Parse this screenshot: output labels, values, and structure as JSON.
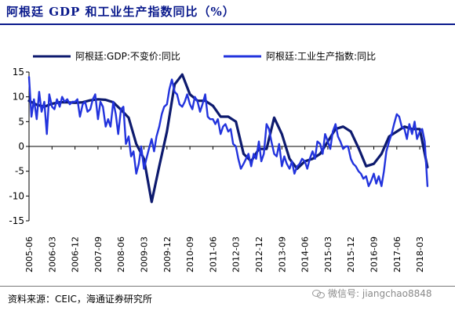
{
  "title": "阿根廷 GDP 和工业生产指数同比（%）",
  "source": "资料来源：CEIC，海通证券研究所",
  "watermark": "微信号: jiangchao8848",
  "chart_data": {
    "type": "line",
    "title": "阿根廷 GDP 和工业生产指数同比（%）",
    "ylim": [
      -15,
      15
    ],
    "yticks": [
      15,
      10,
      5,
      0,
      -5,
      -10,
      -15
    ],
    "xlim": [
      2005.42,
      2018.5
    ],
    "xtick_labels": [
      "2005-06",
      "2006-03",
      "2006-12",
      "2007-09",
      "2008-06",
      "2009-03",
      "2009-12",
      "2010-09",
      "2011-06",
      "2012-03",
      "2012-12",
      "2013-09",
      "2014-06",
      "2015-03",
      "2015-12",
      "2016-09",
      "2017-06",
      "2018-03"
    ],
    "xtick_positions": [
      2005.42,
      2006.17,
      2006.92,
      2007.67,
      2008.42,
      2009.17,
      2009.92,
      2010.67,
      2011.42,
      2012.17,
      2012.92,
      2013.67,
      2014.42,
      2015.17,
      2015.92,
      2016.67,
      2017.42,
      2018.17
    ],
    "grid": false,
    "legend_position": "top",
    "series": [
      {
        "name": "阿根廷:GDP:不变价:同比",
        "color": "#0d1a6e",
        "x": [
          2005.42,
          2005.67,
          2005.92,
          2006.17,
          2006.42,
          2006.67,
          2006.92,
          2007.17,
          2007.42,
          2007.67,
          2007.92,
          2008.17,
          2008.42,
          2008.67,
          2008.92,
          2009.17,
          2009.42,
          2009.67,
          2009.92,
          2010.17,
          2010.42,
          2010.67,
          2010.92,
          2011.17,
          2011.42,
          2011.67,
          2011.92,
          2012.17,
          2012.42,
          2012.67,
          2012.92,
          2013.17,
          2013.42,
          2013.67,
          2013.92,
          2014.17,
          2014.42,
          2014.67,
          2014.92,
          2015.17,
          2015.42,
          2015.67,
          2015.92,
          2016.17,
          2016.42,
          2016.67,
          2016.92,
          2017.17,
          2017.42,
          2017.67,
          2017.92,
          2018.17,
          2018.42
        ],
        "values": [
          9.2,
          8.4,
          8.0,
          8.6,
          8.9,
          8.9,
          8.8,
          8.9,
          9.3,
          9.5,
          9.4,
          8.9,
          7.4,
          5.8,
          0.5,
          -2.5,
          -11.2,
          -4.0,
          3.0,
          12.5,
          14.5,
          10.5,
          9.2,
          9.2,
          8.2,
          6.0,
          6.0,
          5.0,
          -1.5,
          -3.0,
          -0.5,
          -0.5,
          5.8,
          2.5,
          -2.5,
          -4.5,
          -3.0,
          -2.5,
          -1.5,
          1.0,
          3.5,
          4.0,
          3.0,
          -0.3,
          -4.0,
          -3.5,
          -1.5,
          2.0,
          3.0,
          4.0,
          3.5,
          3.5,
          -4.2
        ]
      },
      {
        "name": "阿根廷:工业生产指数:同比",
        "color": "#2233dd",
        "x": [
          2005.42,
          2005.5,
          2005.58,
          2005.67,
          2005.75,
          2005.83,
          2005.92,
          2006.0,
          2006.08,
          2006.17,
          2006.25,
          2006.33,
          2006.42,
          2006.5,
          2006.58,
          2006.67,
          2006.75,
          2006.83,
          2006.92,
          2007.0,
          2007.08,
          2007.17,
          2007.25,
          2007.33,
          2007.42,
          2007.5,
          2007.58,
          2007.67,
          2007.75,
          2007.83,
          2007.92,
          2008.0,
          2008.08,
          2008.17,
          2008.25,
          2008.33,
          2008.42,
          2008.5,
          2008.58,
          2008.67,
          2008.75,
          2008.83,
          2008.92,
          2009.0,
          2009.08,
          2009.17,
          2009.25,
          2009.33,
          2009.42,
          2009.5,
          2009.58,
          2009.67,
          2009.75,
          2009.83,
          2009.92,
          2010.0,
          2010.08,
          2010.17,
          2010.25,
          2010.33,
          2010.42,
          2010.5,
          2010.58,
          2010.67,
          2010.75,
          2010.83,
          2010.92,
          2011.0,
          2011.08,
          2011.17,
          2011.25,
          2011.33,
          2011.42,
          2011.5,
          2011.58,
          2011.67,
          2011.75,
          2011.83,
          2011.92,
          2012.0,
          2012.08,
          2012.17,
          2012.25,
          2012.33,
          2012.42,
          2012.5,
          2012.58,
          2012.67,
          2012.75,
          2012.83,
          2012.92,
          2013.0,
          2013.08,
          2013.17,
          2013.25,
          2013.33,
          2013.42,
          2013.5,
          2013.58,
          2013.67,
          2013.75,
          2013.83,
          2013.92,
          2014.0,
          2014.08,
          2014.17,
          2014.25,
          2014.33,
          2014.42,
          2014.5,
          2014.58,
          2014.67,
          2014.75,
          2014.83,
          2014.92,
          2015.0,
          2015.08,
          2015.17,
          2015.25,
          2015.33,
          2015.42,
          2015.5,
          2015.58,
          2015.67,
          2015.75,
          2015.83,
          2015.92,
          2016.0,
          2016.08,
          2016.17,
          2016.25,
          2016.33,
          2016.42,
          2016.5,
          2016.58,
          2016.67,
          2016.75,
          2016.83,
          2016.92,
          2017.0,
          2017.08,
          2017.17,
          2017.25,
          2017.33,
          2017.42,
          2017.5,
          2017.58,
          2017.67,
          2017.75,
          2017.83,
          2017.92,
          2018.0,
          2018.08,
          2018.17,
          2018.25,
          2018.33,
          2018.42
        ],
        "values": [
          14.0,
          6.0,
          9.5,
          5.5,
          11.0,
          7.0,
          9.0,
          2.5,
          10.5,
          8.0,
          7.5,
          9.5,
          8.0,
          10.0,
          9.0,
          9.5,
          8.5,
          9.0,
          9.0,
          9.5,
          6.0,
          8.5,
          9.0,
          7.0,
          7.5,
          9.5,
          10.5,
          5.5,
          9.0,
          8.0,
          4.0,
          5.5,
          4.0,
          9.0,
          6.5,
          2.5,
          7.5,
          8.0,
          0.5,
          2.0,
          -2.0,
          -1.0,
          -5.5,
          -3.5,
          0.0,
          -4.5,
          -2.5,
          -0.5,
          1.5,
          -1.0,
          2.0,
          4.0,
          6.5,
          8.0,
          8.5,
          11.5,
          13.5,
          11.0,
          10.5,
          8.5,
          8.0,
          9.0,
          10.5,
          8.5,
          7.5,
          10.0,
          9.0,
          7.0,
          8.5,
          10.5,
          6.0,
          5.5,
          5.5,
          4.5,
          5.5,
          2.5,
          4.0,
          4.5,
          3.0,
          3.5,
          0.5,
          0.0,
          -2.5,
          -4.5,
          -3.5,
          -2.5,
          -1.5,
          -4.0,
          -1.5,
          -2.5,
          1.0,
          -3.0,
          -1.5,
          4.5,
          3.5,
          1.0,
          -1.5,
          -2.0,
          0.5,
          -4.0,
          -2.0,
          -3.5,
          -4.5,
          -3.0,
          -5.5,
          -4.0,
          -3.5,
          -2.5,
          -3.0,
          -4.5,
          -2.5,
          -1.0,
          -2.5,
          1.0,
          0.5,
          -1.5,
          2.5,
          1.0,
          -0.5,
          3.0,
          4.5,
          2.0,
          1.0,
          -0.5,
          0.0,
          0.0,
          -2.5,
          -3.5,
          -4.0,
          -5.0,
          -5.5,
          -6.5,
          -6.0,
          -8.0,
          -7.0,
          -5.5,
          -7.5,
          -6.0,
          -8.0,
          -5.0,
          -1.0,
          1.0,
          2.5,
          4.5,
          6.5,
          6.0,
          4.0,
          3.5,
          1.5,
          4.5,
          2.5,
          5.0,
          1.5,
          3.0,
          3.5,
          1.0,
          -8.0
        ]
      }
    ]
  }
}
